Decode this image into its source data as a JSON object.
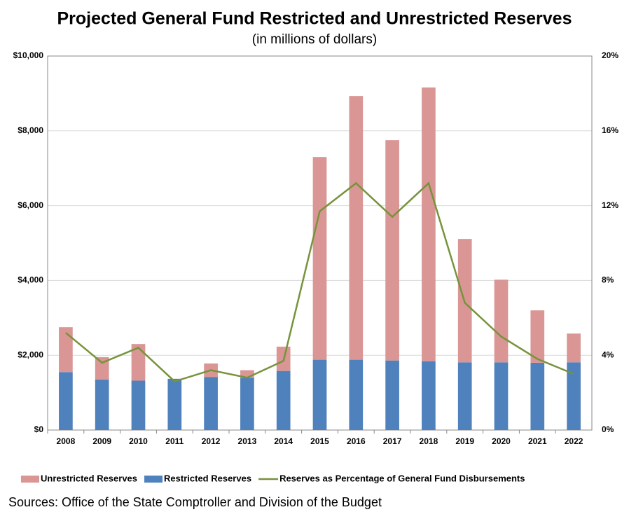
{
  "chart_data": {
    "type": "bar",
    "title": "Projected General Fund Restricted and Unrestricted Reserves",
    "subtitle": "(in millions of dollars)",
    "source": "Sources:  Office of the State Comptroller and Division of the Budget",
    "categories": [
      "2008",
      "2009",
      "2010",
      "2011",
      "2012",
      "2013",
      "2014",
      "2015",
      "2016",
      "2017",
      "2018",
      "2019",
      "2020",
      "2021",
      "2022"
    ],
    "series": [
      {
        "name": "Restricted Reserves",
        "color": "#4f81bd",
        "stack": true,
        "values": [
          1550,
          1350,
          1320,
          1370,
          1420,
          1400,
          1580,
          1880,
          1880,
          1860,
          1840,
          1810,
          1810,
          1800,
          1810
        ]
      },
      {
        "name": "Unrestricted Reserves",
        "color": "#d99694",
        "stack": true,
        "values": [
          1200,
          600,
          980,
          0,
          360,
          200,
          650,
          5420,
          7050,
          5890,
          7320,
          3300,
          2210,
          1400,
          770
        ]
      },
      {
        "name": "Reserves as Percentage of General Fund Disbursements",
        "color": "#77933c",
        "type": "line",
        "axis": "y2",
        "values": [
          5.2,
          3.6,
          4.4,
          2.6,
          3.2,
          2.8,
          3.7,
          11.7,
          13.2,
          11.4,
          13.2,
          6.8,
          5.0,
          3.8,
          3.0
        ]
      }
    ],
    "legend_order": [
      1,
      0,
      2
    ],
    "ylim": [
      0,
      10000
    ],
    "yticks": [
      {
        "value": 0,
        "label": "$0"
      },
      {
        "value": 2000,
        "label": "$2,000"
      },
      {
        "value": 4000,
        "label": "$4,000"
      },
      {
        "value": 6000,
        "label": "$6,000"
      },
      {
        "value": 8000,
        "label": "$8,000"
      },
      {
        "value": 10000,
        "label": "$10,000"
      }
    ],
    "y2lim": [
      0,
      20
    ],
    "y2ticks": [
      {
        "value": 0,
        "label": "0%"
      },
      {
        "value": 4,
        "label": "4%"
      },
      {
        "value": 8,
        "label": "8%"
      },
      {
        "value": 12,
        "label": "12%"
      },
      {
        "value": 16,
        "label": "16%"
      },
      {
        "value": 20,
        "label": "20%"
      }
    ],
    "grid": true,
    "legend": "bottom"
  }
}
